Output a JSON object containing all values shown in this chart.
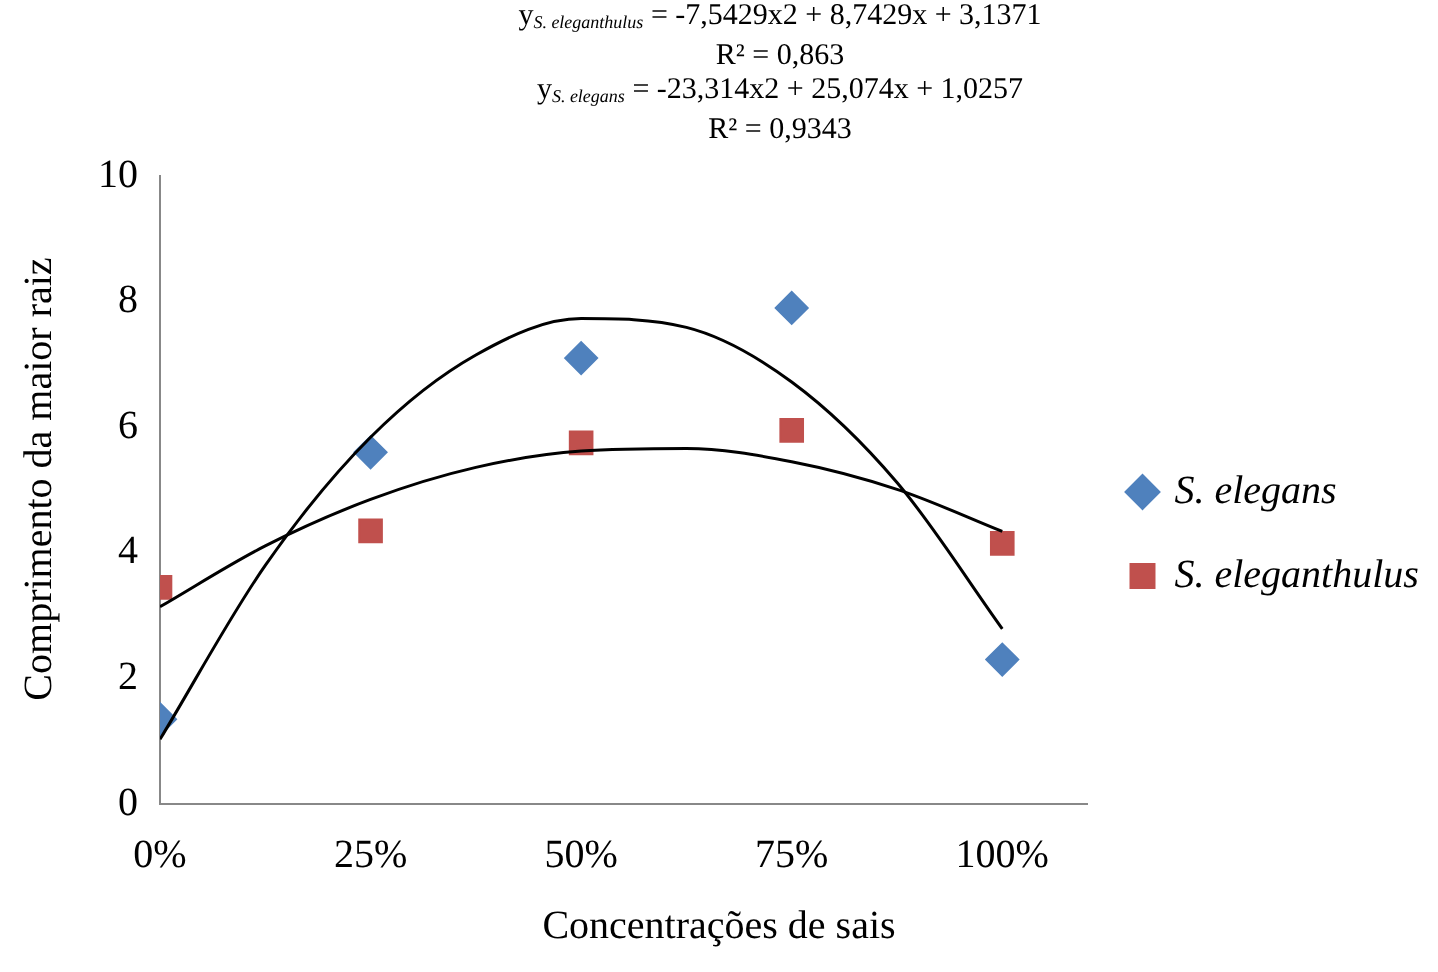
{
  "chart_data": {
    "type": "scatter",
    "annotations": [
      "y$_{S. eleganthulus}$ = -7,5429x2 + 8,7429x + 3,1371",
      "R² = 0,863",
      "y$_{S. elegans}$ = -23,314x2 + 25,074x + 1,0257",
      "R² = 0,9343"
    ],
    "xlabel": "Concentrações de sais",
    "ylabel": "Comprimento da maior raiz",
    "x": [
      0,
      25,
      50,
      75,
      100
    ],
    "xlim": [
      0,
      110
    ],
    "xticks": [
      {
        "value": 0,
        "label": "0%"
      },
      {
        "value": 25,
        "label": "25%"
      },
      {
        "value": 50,
        "label": "50%"
      },
      {
        "value": 75,
        "label": "75%"
      },
      {
        "value": 100,
        "label": "100%"
      }
    ],
    "ylim": [
      0,
      10
    ],
    "yticks": [
      0,
      2,
      4,
      6,
      8,
      10
    ],
    "grid": false,
    "legend": "right",
    "series": [
      {
        "name": "S. elegans",
        "color": "#4f81bd",
        "marker": "diamond",
        "values": [
          1.35,
          5.6,
          7.1,
          7.9,
          2.3
        ]
      },
      {
        "name": "S. eleganthulus",
        "color": "#c0504d",
        "marker": "square",
        "values": [
          3.45,
          4.35,
          5.75,
          5.95,
          4.15
        ]
      },
      {
        "type": "line",
        "color": "#000000",
        "marker": "none",
        "x": [
          0,
          12.5,
          25,
          37.5,
          50,
          62.5,
          75,
          87.5,
          100
        ],
        "values": [
          1.03,
          3.8,
          5.84,
          7.15,
          7.73,
          7.59,
          6.72,
          5.12,
          2.79
        ]
      },
      {
        "type": "line",
        "color": "#000000",
        "marker": "none",
        "x": [
          0,
          12.5,
          25,
          37.5,
          50,
          62.5,
          75,
          87.5,
          100
        ],
        "values": [
          3.14,
          4.11,
          4.85,
          5.36,
          5.62,
          5.66,
          5.45,
          5.01,
          4.34
        ]
      }
    ]
  }
}
